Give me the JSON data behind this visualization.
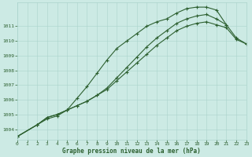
{
  "bg_color": "#cceae4",
  "grid_color": "#aad4cc",
  "line_color": "#2d6030",
  "text_color": "#2d6030",
  "xlabel": "Graphe pression niveau de la mer (hPa)",
  "xlim": [
    0,
    23
  ],
  "ylim": [
    1003.3,
    1012.6
  ],
  "yticks": [
    1004,
    1005,
    1006,
    1007,
    1008,
    1009,
    1010,
    1011
  ],
  "xticks": [
    0,
    1,
    2,
    3,
    4,
    5,
    6,
    7,
    8,
    9,
    10,
    11,
    12,
    13,
    14,
    15,
    16,
    17,
    18,
    19,
    20,
    21,
    22,
    23
  ],
  "line1_x": [
    0,
    2,
    3,
    4,
    5,
    6,
    7,
    8,
    9,
    10,
    11,
    12,
    13,
    14,
    15,
    16,
    17,
    18,
    19,
    20,
    21
  ],
  "line1_y": [
    1003.5,
    1004.3,
    1004.7,
    1004.9,
    1005.3,
    1006.1,
    1006.9,
    1007.8,
    1008.7,
    1009.5,
    1010.0,
    1010.5,
    1011.0,
    1011.3,
    1011.5,
    1011.9,
    1012.2,
    1012.3,
    1012.3,
    1012.1,
    1011.1
  ],
  "line2_x": [
    0,
    2,
    3,
    4,
    5,
    6,
    7,
    8,
    9,
    10,
    11,
    12,
    13,
    14,
    15,
    16,
    17,
    18,
    19,
    20,
    21,
    22,
    23
  ],
  "line2_y": [
    1003.5,
    1004.3,
    1004.8,
    1005.0,
    1005.3,
    1005.6,
    1005.9,
    1006.3,
    1006.8,
    1007.5,
    1008.2,
    1008.9,
    1009.6,
    1010.2,
    1010.7,
    1011.2,
    1011.5,
    1011.7,
    1011.8,
    1011.5,
    1011.1,
    1010.2,
    1009.8
  ],
  "line3_x": [
    0,
    2,
    3,
    4,
    5,
    6,
    7,
    8,
    9,
    10,
    11,
    12,
    13,
    14,
    15,
    16,
    17,
    18,
    19,
    20,
    21,
    22,
    23
  ],
  "line3_y": [
    1003.5,
    1004.3,
    1004.8,
    1005.0,
    1005.3,
    1005.6,
    1005.9,
    1006.3,
    1006.7,
    1007.3,
    1007.9,
    1008.5,
    1009.1,
    1009.7,
    1010.2,
    1010.7,
    1011.0,
    1011.2,
    1011.3,
    1011.1,
    1010.9,
    1010.1,
    1009.8
  ]
}
